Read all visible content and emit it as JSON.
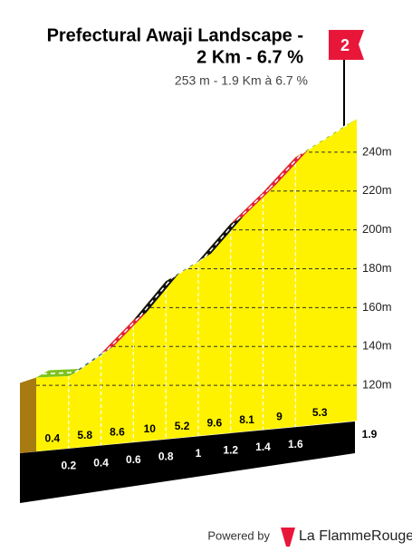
{
  "chart_data": {
    "type": "profile",
    "title": [
      "Prefectural Awaji Landscape -",
      "2 Km - 6.7 %"
    ],
    "subtitle": "253 m - 1.9 Km à 6.7 %",
    "flag": "2",
    "distances": [
      0.2,
      0.4,
      0.6,
      0.8,
      1.0,
      1.2,
      1.4,
      1.6,
      1.9
    ],
    "gradients": [
      0.4,
      5.8,
      8.6,
      10.0,
      5.2,
      9.6,
      8.1,
      9.0,
      5.3
    ],
    "colors": [
      "#7dc31f",
      "#2a6a96",
      "#e3203a",
      "#111111",
      "#2a6a96",
      "#111111",
      "#e3203a",
      "#e3203a",
      "#7dc31f"
    ],
    "start_elevation": 124,
    "ylim": [
      100,
      260
    ],
    "yticks": [
      {
        "value": 120,
        "label": "120m"
      },
      {
        "value": 140,
        "label": "140m"
      },
      {
        "value": 160,
        "label": "160m"
      },
      {
        "value": 180,
        "label": "180m"
      },
      {
        "value": 200,
        "label": "200m"
      },
      {
        "value": 220,
        "label": "220m"
      },
      {
        "value": 240,
        "label": "240m"
      }
    ],
    "footer": {
      "powered": "Powered by",
      "brand": "La FlammeRouge"
    }
  }
}
